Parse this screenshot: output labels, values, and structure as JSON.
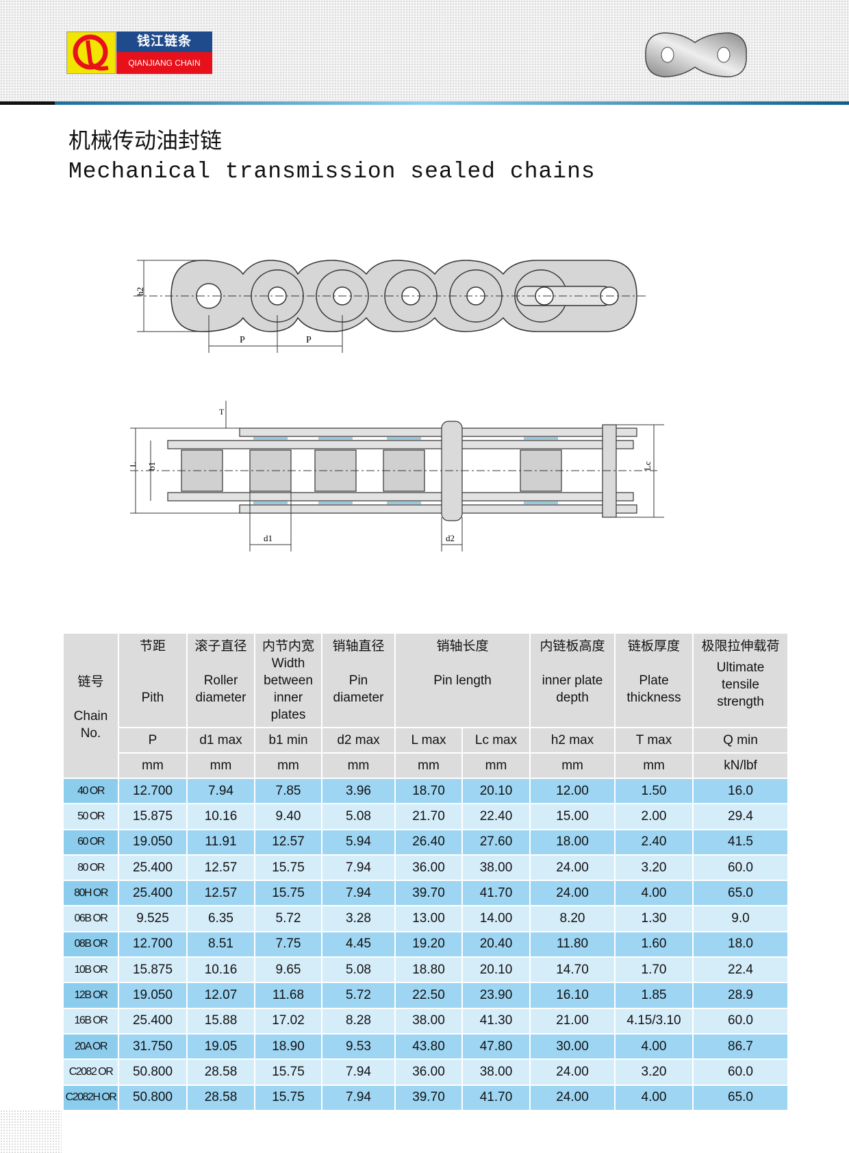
{
  "brand": {
    "cn": "钱江链条",
    "en": "QIANJIANG CHAIN",
    "logo_letters": "QL"
  },
  "title": {
    "cn": "机械传动油封链",
    "en": "Mechanical transmission sealed chains"
  },
  "diagram_labels": {
    "h2": "h2",
    "p": "P",
    "t": "T",
    "l": "L",
    "b1": "b1",
    "lc": "Lc",
    "d1": "d1",
    "d2": "d2"
  },
  "table": {
    "header": {
      "chain_no": {
        "cn": "链号",
        "en": "Chain No."
      },
      "groups": [
        {
          "cn": "节距",
          "en": "Pith"
        },
        {
          "cn": "滚子直径",
          "en": "Roller diameter"
        },
        {
          "cn": "内节内宽",
          "en": "Width between inner plates"
        },
        {
          "cn": "销轴直径",
          "en": "Pin diameter"
        },
        {
          "cn": "销轴长度",
          "en": "Pin length"
        },
        {
          "cn": "内链板高度",
          "en": "inner plate depth"
        },
        {
          "cn": "链板厚度",
          "en": "Plate thickness"
        },
        {
          "cn": "极限拉伸载荷",
          "en": "Ultimate tensile strength"
        }
      ],
      "symbols": [
        "P",
        "d1 max",
        "b1 min",
        "d2 max",
        "L max",
        "Lc max",
        "h2 max",
        "T max",
        "Q min"
      ],
      "units": [
        "mm",
        "mm",
        "mm",
        "mm",
        "mm",
        "mm",
        "mm",
        "mm",
        "kN/lbf"
      ]
    },
    "rows": [
      [
        "40 OR",
        "12.700",
        "7.94",
        "7.85",
        "3.96",
        "18.70",
        "20.10",
        "12.00",
        "1.50",
        "16.0"
      ],
      [
        "50 OR",
        "15.875",
        "10.16",
        "9.40",
        "5.08",
        "21.70",
        "22.40",
        "15.00",
        "2.00",
        "29.4"
      ],
      [
        "60 OR",
        "19.050",
        "11.91",
        "12.57",
        "5.94",
        "26.40",
        "27.60",
        "18.00",
        "2.40",
        "41.5"
      ],
      [
        "80 OR",
        "25.400",
        "12.57",
        "15.75",
        "7.94",
        "36.00",
        "38.00",
        "24.00",
        "3.20",
        "60.0"
      ],
      [
        "80H OR",
        "25.400",
        "12.57",
        "15.75",
        "7.94",
        "39.70",
        "41.70",
        "24.00",
        "4.00",
        "65.0"
      ],
      [
        "06B OR",
        "9.525",
        "6.35",
        "5.72",
        "3.28",
        "13.00",
        "14.00",
        "8.20",
        "1.30",
        "9.0"
      ],
      [
        "08B OR",
        "12.700",
        "8.51",
        "7.75",
        "4.45",
        "19.20",
        "20.40",
        "11.80",
        "1.60",
        "18.0"
      ],
      [
        "10B OR",
        "15.875",
        "10.16",
        "9.65",
        "5.08",
        "18.80",
        "20.10",
        "14.70",
        "1.70",
        "22.4"
      ],
      [
        "12B OR",
        "19.050",
        "12.07",
        "11.68",
        "5.72",
        "22.50",
        "23.90",
        "16.10",
        "1.85",
        "28.9"
      ],
      [
        "16B OR",
        "25.400",
        "15.88",
        "17.02",
        "8.28",
        "38.00",
        "41.30",
        "21.00",
        "4.15/3.10",
        "60.0"
      ],
      [
        "20A OR",
        "31.750",
        "19.05",
        "18.90",
        "9.53",
        "43.80",
        "47.80",
        "30.00",
        "4.00",
        "86.7"
      ],
      [
        "C2082 OR",
        "50.800",
        "28.58",
        "15.75",
        "7.94",
        "36.00",
        "38.00",
        "24.00",
        "3.20",
        "60.0"
      ],
      [
        "C2082H OR",
        "50.800",
        "28.58",
        "15.75",
        "7.94",
        "39.70",
        "41.70",
        "24.00",
        "4.00",
        "65.0"
      ]
    ]
  },
  "colors": {
    "row_dark": "#9dd5f3",
    "row_light": "#d5ecf9",
    "header": "#dcdcdc",
    "brand_blue": "#1f4a8c",
    "brand_red": "#e8101a",
    "brand_yellow": "#f2e600"
  }
}
